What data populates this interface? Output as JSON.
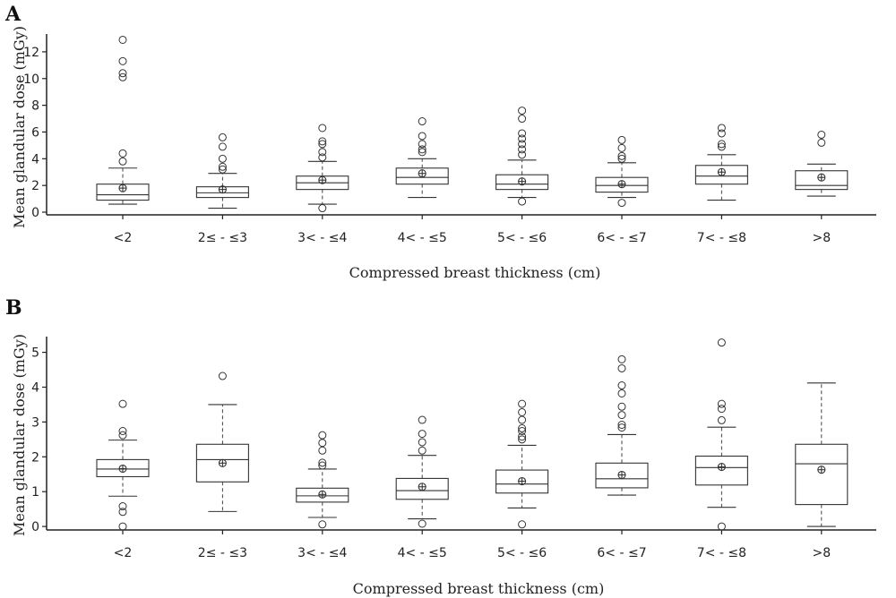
{
  "chart_data": [
    {
      "type": "box",
      "panel": "A",
      "xlabel": "Compressed breast thickness (cm)",
      "ylabel": "Mean glandular dose (mGy)",
      "ylim": [
        -0.2,
        13.2
      ],
      "yticks": [
        0,
        2,
        4,
        6,
        8,
        10,
        12
      ],
      "categories": [
        "<2",
        "2≤ - ≤3",
        "3< - ≤4",
        "4< - ≤5",
        "5< - ≤6",
        "6< - ≤7",
        "7< - ≤8",
        ">8"
      ],
      "boxes": [
        {
          "whisker_low": 0.6,
          "q1": 0.9,
          "median": 1.3,
          "q3": 2.1,
          "whisker_high": 3.3,
          "mean": 1.8,
          "outliers": [
            3.8,
            4.4,
            10.1,
            10.4,
            11.3,
            12.9
          ]
        },
        {
          "whisker_low": 0.3,
          "q1": 1.1,
          "median": 1.45,
          "q3": 1.9,
          "whisker_high": 2.9,
          "mean": 1.7,
          "outliers": [
            3.2,
            3.4,
            4.0,
            4.9,
            5.6
          ]
        },
        {
          "whisker_low": 0.6,
          "q1": 1.7,
          "median": 2.2,
          "q3": 2.7,
          "whisker_high": 3.8,
          "mean": 2.4,
          "outliers": [
            0.3,
            4.1,
            4.5,
            5.1,
            5.3,
            6.3
          ]
        },
        {
          "whisker_low": 1.1,
          "q1": 2.1,
          "median": 2.6,
          "q3": 3.3,
          "whisker_high": 4.0,
          "mean": 2.9,
          "outliers": [
            4.5,
            4.7,
            5.1,
            5.7,
            6.8
          ]
        },
        {
          "whisker_low": 1.1,
          "q1": 1.7,
          "median": 2.1,
          "q3": 2.8,
          "whisker_high": 3.9,
          "mean": 2.3,
          "outliers": [
            0.8,
            4.3,
            4.7,
            5.1,
            5.5,
            5.9,
            7.0,
            7.6
          ]
        },
        {
          "whisker_low": 1.1,
          "q1": 1.5,
          "median": 2.0,
          "q3": 2.6,
          "whisker_high": 3.7,
          "mean": 2.1,
          "outliers": [
            0.7,
            4.0,
            4.2,
            4.8,
            5.4
          ]
        },
        {
          "whisker_low": 0.9,
          "q1": 2.1,
          "median": 2.7,
          "q3": 3.5,
          "whisker_high": 4.3,
          "mean": 3.0,
          "outliers": [
            4.9,
            5.1,
            5.9,
            6.3
          ]
        },
        {
          "whisker_low": 1.2,
          "q1": 1.7,
          "median": 2.0,
          "q3": 3.1,
          "whisker_high": 3.6,
          "mean": 2.6,
          "outliers": [
            5.2,
            5.8
          ]
        }
      ]
    },
    {
      "type": "box",
      "panel": "B",
      "xlabel": "Compressed breast thickness (cm)",
      "ylabel": "Mean glandular dose (mGy)",
      "ylim": [
        -0.1,
        5.4
      ],
      "yticks": [
        0,
        1,
        2,
        3,
        4,
        5
      ],
      "categories": [
        "<2",
        "2≤ - ≤3",
        "3< - ≤4",
        "4< - ≤5",
        "5< - ≤6",
        "6< - ≤7",
        "7< - ≤8",
        ">8"
      ],
      "boxes": [
        {
          "whisker_low": 0.87,
          "q1": 1.43,
          "median": 1.65,
          "q3": 1.92,
          "whisker_high": 2.48,
          "mean": 1.66,
          "outliers": [
            0.0,
            0.42,
            0.58,
            2.62,
            2.74,
            3.52
          ]
        },
        {
          "whisker_low": 0.43,
          "q1": 1.28,
          "median": 1.92,
          "q3": 2.36,
          "whisker_high": 3.5,
          "mean": 1.82,
          "outliers": [
            4.32
          ]
        },
        {
          "whisker_low": 0.26,
          "q1": 0.7,
          "median": 0.88,
          "q3": 1.1,
          "whisker_high": 1.65,
          "mean": 0.92,
          "outliers": [
            0.06,
            1.75,
            1.83,
            2.18,
            2.4,
            2.62
          ]
        },
        {
          "whisker_low": 0.22,
          "q1": 0.78,
          "median": 1.03,
          "q3": 1.38,
          "whisker_high": 2.04,
          "mean": 1.14,
          "outliers": [
            0.08,
            2.18,
            2.42,
            2.66,
            3.06
          ]
        },
        {
          "whisker_low": 0.53,
          "q1": 0.96,
          "median": 1.22,
          "q3": 1.62,
          "whisker_high": 2.33,
          "mean": 1.3,
          "outliers": [
            0.06,
            2.5,
            2.58,
            2.74,
            2.82,
            3.06,
            3.28,
            3.52
          ]
        },
        {
          "whisker_low": 0.9,
          "q1": 1.11,
          "median": 1.37,
          "q3": 1.82,
          "whisker_high": 2.64,
          "mean": 1.48,
          "outliers": [
            2.84,
            2.92,
            3.2,
            3.44,
            3.82,
            4.05,
            4.54,
            4.8
          ]
        },
        {
          "whisker_low": 0.55,
          "q1": 1.19,
          "median": 1.69,
          "q3": 2.02,
          "whisker_high": 2.85,
          "mean": 1.71,
          "outliers": [
            0.0,
            3.05,
            3.38,
            3.52,
            5.28
          ]
        },
        {
          "whisker_low": 0.0,
          "q1": 0.63,
          "median": 1.8,
          "q3": 2.36,
          "whisker_high": 4.12,
          "mean": 1.63,
          "outliers": []
        }
      ]
    }
  ]
}
